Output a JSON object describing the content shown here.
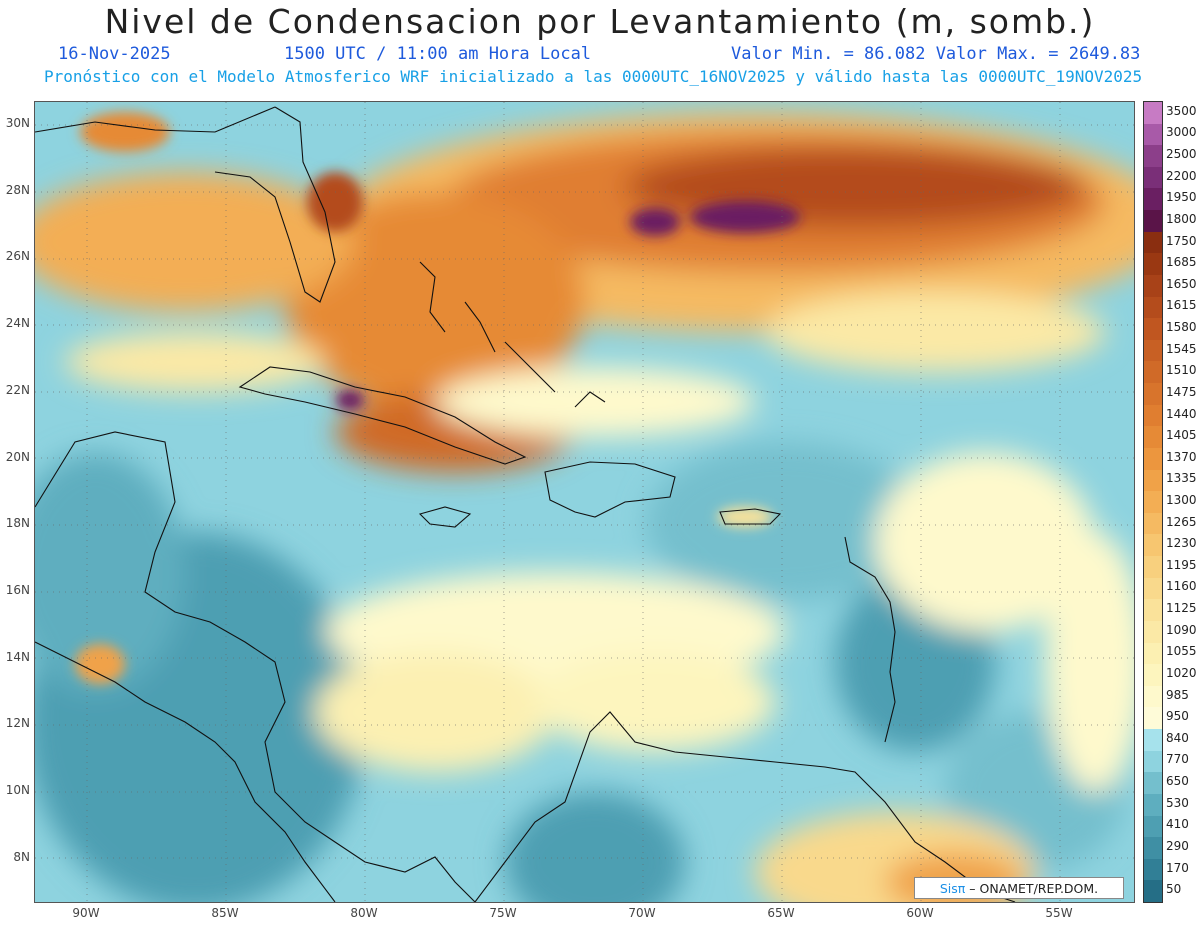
{
  "title": "Nivel de Condensacion por Levantamiento (m, somb.)",
  "header": {
    "date": "16-Nov-2025",
    "time": "1500 UTC / 11:00 am Hora Local",
    "minmax": "Valor Min. = 86.082  Valor Max. = 2649.83",
    "forecast": "Pronóstico con el Modelo Atmosferico WRF inicializado a las 0000UTC_16NOV2025 y válido hasta las  0000UTC_19NOV2025"
  },
  "axes": {
    "lat_labels": [
      "30N",
      "28N",
      "26N",
      "24N",
      "22N",
      "20N",
      "18N",
      "16N",
      "14N",
      "12N",
      "10N",
      "8N"
    ],
    "lon_labels": [
      "90W",
      "85W",
      "80W",
      "75W",
      "70W",
      "65W",
      "60W",
      "55W"
    ]
  },
  "colorbar": {
    "levels": [
      "3500",
      "3000",
      "2500",
      "2200",
      "1950",
      "1800",
      "1750",
      "1685",
      "1650",
      "1615",
      "1580",
      "1545",
      "1510",
      "1475",
      "1440",
      "1405",
      "1370",
      "1335",
      "1300",
      "1265",
      "1230",
      "1195",
      "1160",
      "1125",
      "1090",
      "1055",
      "1020",
      "985",
      "950",
      "840",
      "770",
      "650",
      "530",
      "410",
      "290",
      "170",
      "50"
    ],
    "colors": [
      "#c77bc4",
      "#a85aa8",
      "#8c3f8a",
      "#7a2f78",
      "#6a1f62",
      "#5a1448",
      "#8a2e10",
      "#9a3812",
      "#a84218",
      "#b44c1c",
      "#c05620",
      "#c86024",
      "#d06a28",
      "#d8742c",
      "#e07e30",
      "#e68a36",
      "#ec963e",
      "#f0a248",
      "#f3ae54",
      "#f5ba62",
      "#f7c670",
      "#f8d07e",
      "#f9d98c",
      "#fae29a",
      "#fbe9a6",
      "#fcf0b2",
      "#fdf5be",
      "#fef9cc",
      "#fefbd8",
      "#a6e2ec",
      "#8ed3df",
      "#74bfcd",
      "#5eaebf",
      "#4e9fb2",
      "#3f8fa4",
      "#317f96",
      "#256e86"
    ]
  },
  "credit": {
    "sis": "Sisπ",
    "text": "– ONAMET/REP.DOM."
  }
}
